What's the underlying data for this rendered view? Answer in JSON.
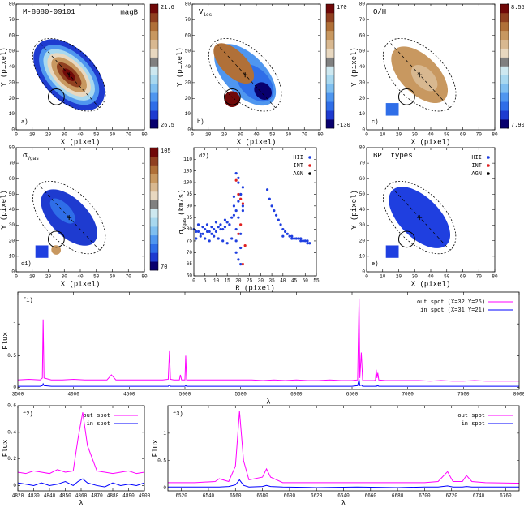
{
  "chart_data": [
    {
      "type": "map",
      "title": "M-8080-09101",
      "label": "magB",
      "panel": "a)",
      "xlabel": "X (pixel)",
      "ylabel": "Y (pixel)",
      "xlim": [
        0,
        80
      ],
      "xticks": [
        0,
        10,
        20,
        30,
        40,
        50,
        60,
        70,
        80
      ],
      "ylim": [
        0,
        80
      ],
      "yticks": [
        0,
        10,
        20,
        30,
        40,
        50,
        60,
        70,
        80
      ],
      "clim": [
        26.5,
        21.6
      ],
      "cticks": [
        21.6,
        26.5
      ],
      "colormap": [
        "#08006e",
        "#1e3bd0",
        "#2f6ee8",
        "#4f96ef",
        "#7fbff0",
        "#a8d8ef",
        "#cde8f0",
        "#808080",
        "#e8d8c0",
        "#d8b890",
        "#c89860",
        "#b07038",
        "#904020",
        "#700808"
      ]
    },
    {
      "type": "map",
      "title": "V",
      "title_sub": "los",
      "panel": "b)",
      "xlabel": "X (pixel)",
      "ylabel": "Y (pixel)",
      "xlim": [
        0,
        80
      ],
      "xticks": [
        0,
        10,
        20,
        30,
        40,
        50,
        60,
        70,
        80
      ],
      "ylim": [
        0,
        80
      ],
      "yticks": [
        0,
        10,
        20,
        30,
        40,
        50,
        60,
        70,
        80
      ],
      "clim": [
        -130,
        170
      ],
      "cticks": [
        170,
        -130
      ],
      "colormap": [
        "#08006e",
        "#1e3bd0",
        "#2f6ee8",
        "#4f96ef",
        "#7fbff0",
        "#a8d8ef",
        "#cde8f0",
        "#808080",
        "#e8d8c0",
        "#d8b890",
        "#c89860",
        "#b07038",
        "#904020",
        "#700808"
      ]
    },
    {
      "type": "map",
      "title": "O/H",
      "panel": "c)",
      "xlabel": "X (pixel)",
      "ylabel": "Y (pixel)",
      "xlim": [
        0,
        80
      ],
      "xticks": [
        0,
        10,
        20,
        30,
        40,
        50,
        60,
        70,
        80
      ],
      "ylim": [
        0,
        80
      ],
      "yticks": [
        0,
        10,
        20,
        30,
        40,
        50,
        60,
        70,
        80
      ],
      "clim": [
        7.9,
        8.55
      ],
      "cticks": [
        8.55,
        {
          "value": 7.9,
          "label": "7.90"
        }
      ],
      "colormap": [
        "#08006e",
        "#1e3bd0",
        "#2f6ee8",
        "#4f96ef",
        "#7fbff0",
        "#a8d8ef",
        "#cde8f0",
        "#808080",
        "#e8d8c0",
        "#d8b890",
        "#c89860",
        "#b07038",
        "#904020",
        "#700808"
      ]
    },
    {
      "type": "map",
      "title": "σ",
      "title_sub": "Vgas",
      "panel": "d1)",
      "xlabel": "X (pixel)",
      "ylabel": "Y (pixel)",
      "xlim": [
        0,
        80
      ],
      "xticks": [
        0,
        10,
        20,
        30,
        40,
        50,
        60,
        70,
        80
      ],
      "ylim": [
        0,
        80
      ],
      "yticks": [
        0,
        10,
        20,
        30,
        40,
        50,
        60,
        70,
        80
      ],
      "clim": [
        70,
        105
      ],
      "cticks": [
        105,
        70
      ],
      "colormap": [
        "#08006e",
        "#1e3bd0",
        "#2f6ee8",
        "#4f96ef",
        "#7fbff0",
        "#a8d8ef",
        "#cde8f0",
        "#808080",
        "#e8d8c0",
        "#d8b890",
        "#c89860",
        "#b07038",
        "#904020",
        "#700808"
      ]
    },
    {
      "type": "scatter",
      "panel": "d2)",
      "xlabel": "R (pixel)",
      "ylabel": "σ",
      "ylabel_sub": "Vgas",
      "ylabel_unit": "(km/s)",
      "xlim": [
        0,
        55
      ],
      "xticks": [
        0,
        5,
        10,
        15,
        20,
        25,
        30,
        35,
        40,
        45,
        50,
        55
      ],
      "ylim": [
        60,
        115
      ],
      "yticks": [
        60,
        65,
        70,
        75,
        80,
        85,
        90,
        95,
        100,
        105,
        110
      ],
      "series": [
        {
          "name": "HII",
          "color": "#1f3fe0",
          "x": [
            0,
            1,
            2,
            3,
            4,
            5,
            6,
            7,
            8,
            9,
            10,
            11,
            12,
            13,
            14,
            15,
            16,
            17,
            18,
            19,
            20,
            21,
            22,
            1,
            3,
            5,
            7,
            9,
            11,
            13,
            15,
            17,
            19,
            21,
            2,
            4,
            6,
            8,
            10,
            12,
            14,
            16,
            18,
            20,
            18,
            19,
            20,
            21,
            22,
            19,
            20,
            21,
            20,
            22,
            19,
            21,
            33,
            34,
            35,
            36,
            37,
            38,
            39,
            40,
            41,
            42,
            43,
            44,
            45,
            46,
            47,
            48,
            49,
            50,
            51,
            52,
            40,
            44,
            48,
            51
          ],
          "values": [
            80,
            79,
            79,
            78,
            78,
            80,
            79,
            79,
            78,
            80,
            79,
            81,
            82,
            80,
            81,
            83,
            82,
            85,
            86,
            88,
            92,
            95,
            98,
            76,
            77,
            76,
            75,
            77,
            76,
            75,
            74,
            76,
            75,
            72,
            82,
            81,
            82,
            81,
            83,
            80,
            84,
            82,
            90,
            100,
            94,
            104,
            102,
            95,
            90,
            70,
            67,
            65,
            85,
            88,
            80,
            78,
            97,
            93,
            90,
            88,
            86,
            84,
            82,
            80,
            79,
            78,
            77,
            77,
            76,
            76,
            76,
            75,
            75,
            75,
            74,
            74,
            77,
            76,
            76,
            75
          ]
        },
        {
          "name": "INT",
          "color": "#e02020",
          "x": [
            19,
            20,
            21,
            22,
            21,
            20,
            23,
            22
          ],
          "values": [
            101,
            95,
            93,
            91,
            82,
            78,
            73,
            65
          ]
        },
        {
          "name": "AGN",
          "color": "#000000",
          "x": [],
          "values": []
        }
      ]
    },
    {
      "type": "map",
      "title": "BPT types",
      "panel": "e)",
      "xlabel": "X (pixel)",
      "ylabel": "Y (pixel)",
      "xlim": [
        0,
        80
      ],
      "xticks": [
        0,
        10,
        20,
        30,
        40,
        50,
        60,
        70,
        80
      ],
      "ylim": [
        0,
        80
      ],
      "yticks": [
        0,
        10,
        20,
        30,
        40,
        50,
        60,
        70,
        80
      ],
      "legend": [
        {
          "name": "HII",
          "color": "#1f3fe0"
        },
        {
          "name": "INT",
          "color": "#e02020"
        },
        {
          "name": "AGN",
          "color": "#000000"
        }
      ]
    },
    {
      "type": "line",
      "panel": "f1)",
      "xlabel": "λ",
      "ylabel": "Flux",
      "xlim": [
        3500,
        8000
      ],
      "xticks": [
        3500,
        4000,
        4500,
        5000,
        5500,
        6000,
        6500,
        7000,
        7500,
        8000
      ],
      "ylim": [
        -0.03,
        1.5
      ],
      "yticks": [
        0,
        0.5,
        1
      ],
      "x": [
        3500,
        3600,
        3700,
        3720,
        3727,
        3735,
        3800,
        3900,
        4000,
        4100,
        4200,
        4300,
        4340,
        4380,
        4400,
        4500,
        4600,
        4700,
        4800,
        4850,
        4861,
        4870,
        4900,
        4950,
        4959,
        4970,
        5000,
        5007,
        5015,
        5100,
        5200,
        5300,
        5400,
        5500,
        5600,
        5700,
        5800,
        5900,
        6000,
        6100,
        6200,
        6300,
        6400,
        6500,
        6550,
        6563,
        6570,
        6583,
        6595,
        6600,
        6700,
        6710,
        6717,
        6724,
        6731,
        6740,
        6800,
        6900,
        7000,
        7100,
        7200,
        7300,
        7400,
        7500,
        7600,
        7700,
        7800,
        7900,
        8000
      ],
      "series": [
        {
          "name": "out spot (X=32 Y=26)",
          "color": "#ff00ff",
          "values": [
            0.12,
            0.13,
            0.12,
            0.15,
            1.07,
            0.15,
            0.12,
            0.12,
            0.13,
            0.12,
            0.12,
            0.12,
            0.2,
            0.12,
            0.12,
            0.12,
            0.12,
            0.12,
            0.12,
            0.13,
            0.57,
            0.13,
            0.12,
            0.12,
            0.2,
            0.12,
            0.12,
            0.5,
            0.12,
            0.12,
            0.12,
            0.12,
            0.12,
            0.12,
            0.12,
            0.11,
            0.12,
            0.11,
            0.12,
            0.11,
            0.11,
            0.12,
            0.11,
            0.11,
            0.12,
            1.4,
            0.15,
            0.55,
            0.12,
            0.11,
            0.11,
            0.12,
            0.28,
            0.15,
            0.23,
            0.12,
            0.11,
            0.11,
            0.11,
            0.11,
            0.1,
            0.11,
            0.1,
            0.1,
            0.11,
            0.1,
            0.1,
            0.1,
            0.1
          ]
        },
        {
          "name": "in spot (X=31 Y=21)",
          "color": "#0000ff",
          "values": [
            0.02,
            0.02,
            0.02,
            0.03,
            0.06,
            0.03,
            0.02,
            0.02,
            0.02,
            0.02,
            0.02,
            0.02,
            0.02,
            0.02,
            0.02,
            0.02,
            0.02,
            0.02,
            0.02,
            0.02,
            0.04,
            0.02,
            0.02,
            0.02,
            0.02,
            0.02,
            0.02,
            0.03,
            0.02,
            0.02,
            0.02,
            0.02,
            0.02,
            0.02,
            0.02,
            0.02,
            0.02,
            0.02,
            0.02,
            0.02,
            0.02,
            0.02,
            0.02,
            0.02,
            0.03,
            0.13,
            0.03,
            0.04,
            0.02,
            0.02,
            0.02,
            0.02,
            0.03,
            0.02,
            0.03,
            0.02,
            0.02,
            0.02,
            0.02,
            0.02,
            0.02,
            0.02,
            0.02,
            0.02,
            0.02,
            0.02,
            0.02,
            0.02,
            0.02
          ]
        }
      ]
    },
    {
      "type": "line",
      "panel": "f2)",
      "xlabel": "λ",
      "ylabel": "Flux",
      "xlim": [
        4820,
        4900
      ],
      "xticks": [
        4820,
        4830,
        4840,
        4850,
        4860,
        4870,
        4880,
        4890,
        4900
      ],
      "ylim": [
        -0.04,
        0.6
      ],
      "yticks": [
        0,
        0.2,
        0.4,
        0.6
      ],
      "x": [
        4820,
        4825,
        4830,
        4835,
        4840,
        4845,
        4850,
        4855,
        4858,
        4861,
        4864,
        4870,
        4875,
        4880,
        4885,
        4890,
        4895,
        4900
      ],
      "series": [
        {
          "name": "out spot",
          "color": "#ff00ff",
          "values": [
            0.1,
            0.09,
            0.11,
            0.1,
            0.09,
            0.12,
            0.1,
            0.11,
            0.35,
            0.55,
            0.3,
            0.11,
            0.1,
            0.09,
            0.1,
            0.11,
            0.09,
            0.1
          ]
        },
        {
          "name": "in spot",
          "color": "#0000ff",
          "values": [
            0.02,
            0.01,
            0,
            0.02,
            0,
            0.01,
            0.03,
            0,
            0.03,
            0.05,
            0.02,
            0,
            -0.01,
            0.02,
            0,
            0.01,
            0,
            0.02
          ]
        }
      ]
    },
    {
      "type": "line",
      "panel": "f3)",
      "xlabel": "λ",
      "ylabel": "Flux",
      "xlim": [
        6510,
        6770
      ],
      "xticks": [
        6520,
        6540,
        6560,
        6580,
        6600,
        6620,
        6640,
        6660,
        6680,
        6700,
        6720,
        6740,
        6760
      ],
      "ylim": [
        -0.05,
        1.5
      ],
      "yticks": [
        0,
        0.5,
        1
      ],
      "x": [
        6510,
        6530,
        6545,
        6548,
        6555,
        6560,
        6563,
        6566,
        6570,
        6580,
        6583,
        6586,
        6595,
        6620,
        6650,
        6680,
        6700,
        6710,
        6717,
        6721,
        6728,
        6731,
        6735,
        6745,
        6770
      ],
      "series": [
        {
          "name": "out spot",
          "color": "#ff00ff",
          "values": [
            0.1,
            0.1,
            0.12,
            0.17,
            0.12,
            0.4,
            1.4,
            0.5,
            0.15,
            0.2,
            0.35,
            0.2,
            0.1,
            0.1,
            0.1,
            0.1,
            0.1,
            0.12,
            0.3,
            0.12,
            0.12,
            0.23,
            0.12,
            0.1,
            0.09
          ]
        },
        {
          "name": "in spot",
          "color": "#0000ff",
          "values": [
            0.02,
            0.02,
            0.02,
            0.02,
            0.03,
            0.06,
            0.15,
            0.05,
            0.02,
            0.03,
            0.05,
            0.03,
            0.02,
            0.01,
            0.02,
            0.01,
            0.02,
            0.02,
            0.04,
            0.02,
            0.02,
            0.03,
            0.02,
            0.02,
            0.02
          ]
        }
      ]
    }
  ]
}
